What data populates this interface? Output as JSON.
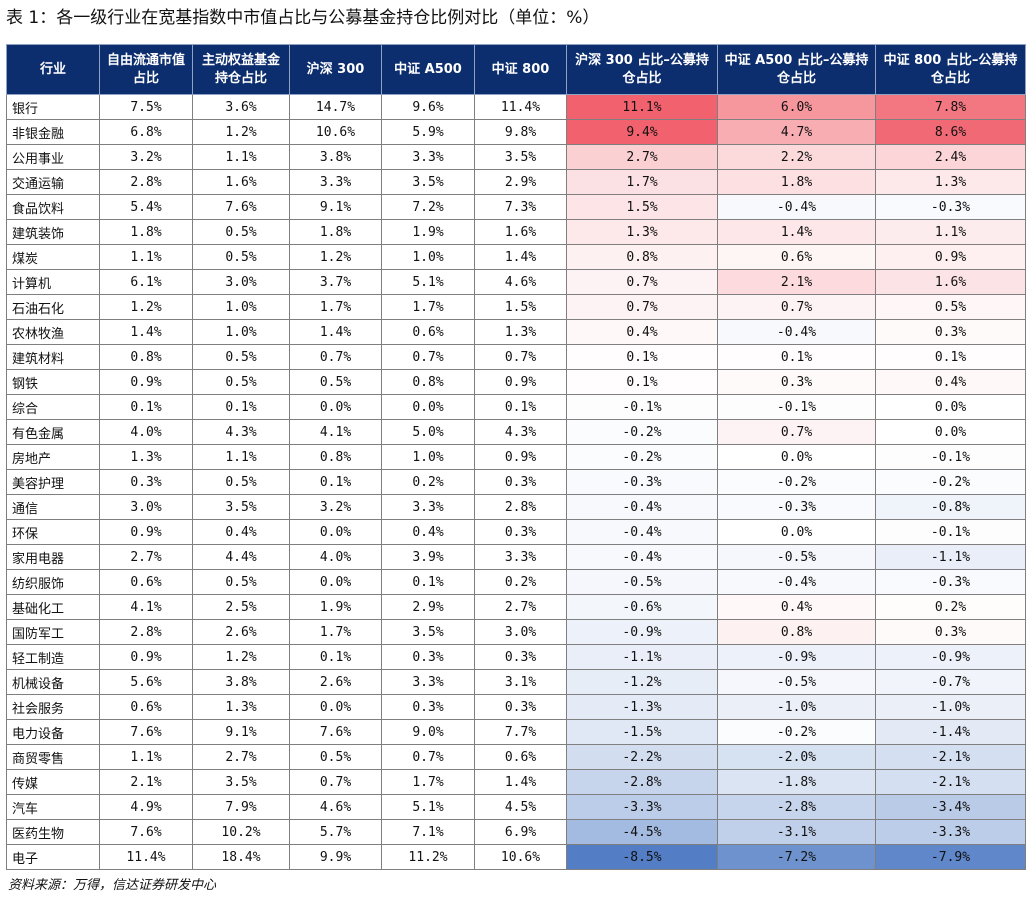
{
  "title": "表 1：各一级行业在宽基指数中市值占比与公募基金持仓比例对比（单位：%）",
  "source_note": "资料来源：万得，信达证券研发中心",
  "headers": [
    "行业",
    "自由流通市值占比",
    "主动权益基金持仓占比",
    "沪深 300",
    "中证 A500",
    "中证 800",
    "沪深 300 占比–公募持仓占比",
    "中证 A500 占比–公募持仓占比",
    "中证 800 占比–公募持仓占比"
  ],
  "colors": {
    "header_bg": "#0c2d6e",
    "positive": "#f05a66",
    "negative": "#3f6fbf"
  },
  "rows": [
    [
      "银行",
      "7.5%",
      "3.6%",
      "14.7%",
      "9.6%",
      "11.4%",
      "11.1%",
      "6.0%",
      "7.8%"
    ],
    [
      "非银金融",
      "6.8%",
      "1.2%",
      "10.6%",
      "5.9%",
      "9.8%",
      "9.4%",
      "4.7%",
      "8.6%"
    ],
    [
      "公用事业",
      "3.2%",
      "1.1%",
      "3.8%",
      "3.3%",
      "3.5%",
      "2.7%",
      "2.2%",
      "2.4%"
    ],
    [
      "交通运输",
      "2.8%",
      "1.6%",
      "3.3%",
      "3.5%",
      "2.9%",
      "1.7%",
      "1.8%",
      "1.3%"
    ],
    [
      "食品饮料",
      "5.4%",
      "7.6%",
      "9.1%",
      "7.2%",
      "7.3%",
      "1.5%",
      "-0.4%",
      "-0.3%"
    ],
    [
      "建筑装饰",
      "1.8%",
      "0.5%",
      "1.8%",
      "1.9%",
      "1.6%",
      "1.3%",
      "1.4%",
      "1.1%"
    ],
    [
      "煤炭",
      "1.1%",
      "0.5%",
      "1.2%",
      "1.0%",
      "1.4%",
      "0.8%",
      "0.6%",
      "0.9%"
    ],
    [
      "计算机",
      "6.1%",
      "3.0%",
      "3.7%",
      "5.1%",
      "4.6%",
      "0.7%",
      "2.1%",
      "1.6%"
    ],
    [
      "石油石化",
      "1.2%",
      "1.0%",
      "1.7%",
      "1.7%",
      "1.5%",
      "0.7%",
      "0.7%",
      "0.5%"
    ],
    [
      "农林牧渔",
      "1.4%",
      "1.0%",
      "1.4%",
      "0.6%",
      "1.3%",
      "0.4%",
      "-0.4%",
      "0.3%"
    ],
    [
      "建筑材料",
      "0.8%",
      "0.5%",
      "0.7%",
      "0.7%",
      "0.7%",
      "0.1%",
      "0.1%",
      "0.1%"
    ],
    [
      "钢铁",
      "0.9%",
      "0.5%",
      "0.5%",
      "0.8%",
      "0.9%",
      "0.1%",
      "0.3%",
      "0.4%"
    ],
    [
      "综合",
      "0.1%",
      "0.1%",
      "0.0%",
      "0.0%",
      "0.1%",
      "-0.1%",
      "-0.1%",
      "0.0%"
    ],
    [
      "有色金属",
      "4.0%",
      "4.3%",
      "4.1%",
      "5.0%",
      "4.3%",
      "-0.2%",
      "0.7%",
      "0.0%"
    ],
    [
      "房地产",
      "1.3%",
      "1.1%",
      "0.8%",
      "1.0%",
      "0.9%",
      "-0.2%",
      "0.0%",
      "-0.1%"
    ],
    [
      "美容护理",
      "0.3%",
      "0.5%",
      "0.1%",
      "0.2%",
      "0.3%",
      "-0.3%",
      "-0.2%",
      "-0.2%"
    ],
    [
      "通信",
      "3.0%",
      "3.5%",
      "3.2%",
      "3.3%",
      "2.8%",
      "-0.4%",
      "-0.3%",
      "-0.8%"
    ],
    [
      "环保",
      "0.9%",
      "0.4%",
      "0.0%",
      "0.4%",
      "0.3%",
      "-0.4%",
      "0.0%",
      "-0.1%"
    ],
    [
      "家用电器",
      "2.7%",
      "4.4%",
      "4.0%",
      "3.9%",
      "3.3%",
      "-0.4%",
      "-0.5%",
      "-1.1%"
    ],
    [
      "纺织服饰",
      "0.6%",
      "0.5%",
      "0.0%",
      "0.1%",
      "0.2%",
      "-0.5%",
      "-0.4%",
      "-0.3%"
    ],
    [
      "基础化工",
      "4.1%",
      "2.5%",
      "1.9%",
      "2.9%",
      "2.7%",
      "-0.6%",
      "0.4%",
      "0.2%"
    ],
    [
      "国防军工",
      "2.8%",
      "2.6%",
      "1.7%",
      "3.5%",
      "3.0%",
      "-0.9%",
      "0.8%",
      "0.3%"
    ],
    [
      "轻工制造",
      "0.9%",
      "1.2%",
      "0.1%",
      "0.3%",
      "0.3%",
      "-1.1%",
      "-0.9%",
      "-0.9%"
    ],
    [
      "机械设备",
      "5.6%",
      "3.8%",
      "2.6%",
      "3.3%",
      "3.1%",
      "-1.2%",
      "-0.5%",
      "-0.7%"
    ],
    [
      "社会服务",
      "0.6%",
      "1.3%",
      "0.0%",
      "0.3%",
      "0.3%",
      "-1.3%",
      "-1.0%",
      "-1.0%"
    ],
    [
      "电力设备",
      "7.6%",
      "9.1%",
      "7.6%",
      "9.0%",
      "7.7%",
      "-1.5%",
      "-0.2%",
      "-1.4%"
    ],
    [
      "商贸零售",
      "1.1%",
      "2.7%",
      "0.5%",
      "0.7%",
      "0.6%",
      "-2.2%",
      "-2.0%",
      "-2.1%"
    ],
    [
      "传媒",
      "2.1%",
      "3.5%",
      "0.7%",
      "1.7%",
      "1.4%",
      "-2.8%",
      "-1.8%",
      "-2.1%"
    ],
    [
      "汽车",
      "4.9%",
      "7.9%",
      "4.6%",
      "5.1%",
      "4.5%",
      "-3.3%",
      "-2.8%",
      "-3.4%"
    ],
    [
      "医药生物",
      "7.6%",
      "10.2%",
      "5.7%",
      "7.1%",
      "6.9%",
      "-4.5%",
      "-3.1%",
      "-3.3%"
    ],
    [
      "电子",
      "11.4%",
      "18.4%",
      "9.9%",
      "11.2%",
      "10.6%",
      "-8.5%",
      "-7.2%",
      "-7.9%"
    ]
  ]
}
